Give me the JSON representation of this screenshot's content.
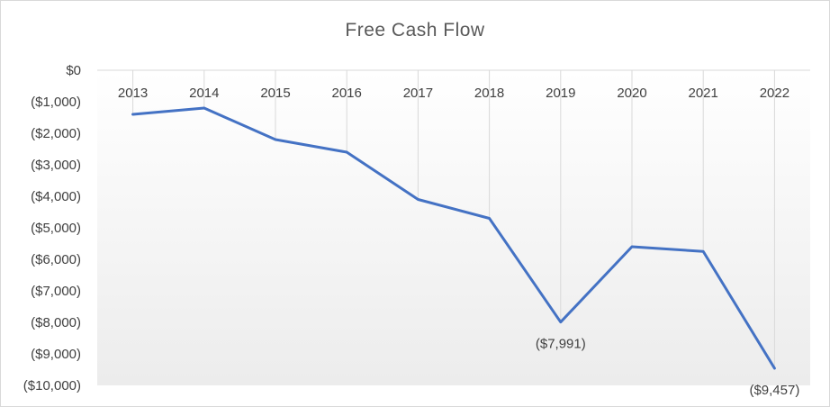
{
  "chart_data": {
    "type": "line",
    "title": "Free Cash Flow",
    "xlabel": "",
    "ylabel": "",
    "categories": [
      "2013",
      "2014",
      "2015",
      "2016",
      "2017",
      "2018",
      "2019",
      "2020",
      "2021",
      "2022"
    ],
    "series": [
      {
        "values": [
          -1400,
          -1200,
          -2200,
          -2600,
          -4100,
          -4700,
          -7991,
          -5600,
          -5750,
          -9457
        ],
        "color": "#4472c4"
      }
    ],
    "data_labels": [
      {
        "category": "2019",
        "text": "($7,991)"
      },
      {
        "category": "2022",
        "text": "($9,457)"
      }
    ],
    "ylim": [
      -10000,
      0
    ],
    "yticks": [
      {
        "value": 0,
        "label": "$0"
      },
      {
        "value": -1000,
        "label": "($1,000)"
      },
      {
        "value": -2000,
        "label": "($2,000)"
      },
      {
        "value": -3000,
        "label": "($3,000)"
      },
      {
        "value": -4000,
        "label": "($4,000)"
      },
      {
        "value": -5000,
        "label": "($5,000)"
      },
      {
        "value": -6000,
        "label": "($6,000)"
      },
      {
        "value": -7000,
        "label": "($7,000)"
      },
      {
        "value": -8000,
        "label": "($8,000)"
      },
      {
        "value": -9000,
        "label": "($9,000)"
      },
      {
        "value": -10000,
        "label": "($10,000)"
      }
    ],
    "grid": "vertical drop lines",
    "legend": "none",
    "plot_background": "gradient white to light gray"
  }
}
